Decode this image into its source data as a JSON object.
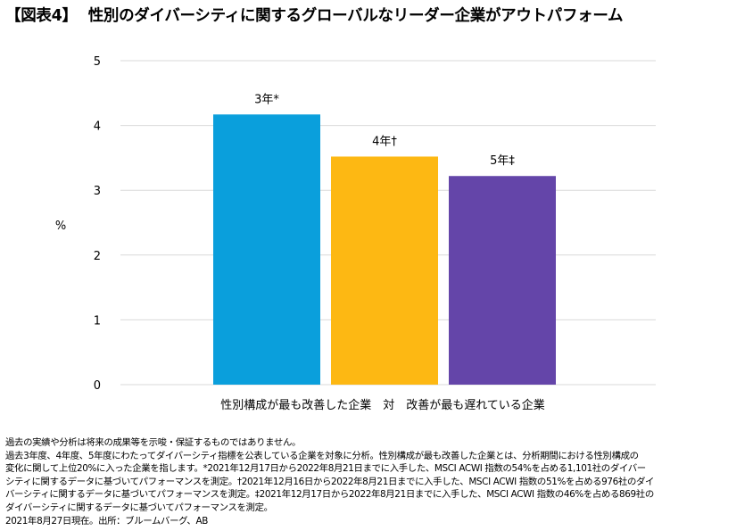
{
  "title": {
    "label": "【図表4】",
    "text": "性別のダイバーシティに関するグローバルなリーダー企業がアウトパフォーム"
  },
  "chart_data": {
    "type": "bar",
    "categories": [
      "3年*",
      "4年†",
      "5年‡"
    ],
    "values": [
      4.17,
      3.52,
      3.22
    ],
    "colors": [
      "#0a9fdc",
      "#fdb813",
      "#6445a9"
    ],
    "ylabel": "%",
    "xlabel": "性別構成が最も改善した企業　対　改善が最も遅れている企業",
    "ylim": [
      0,
      5
    ],
    "yticks": [
      "0",
      "1",
      "2",
      "3",
      "4",
      "5"
    ],
    "grid": true,
    "axis_color": "#d9d9d9"
  },
  "footnotes": [
    "過去の実績や分析は将来の成果等を示唆・保証するものではありません。",
    "過去3年度、4年度、5年度にわたってダイバーシティ指標を公表している企業を対象に分析。性別構成が最も改善した企業とは、分析期間における性別構成の",
    "変化に関して上位20%に入った企業を指します。*2021年12月17日から2022年8月21日までに入手した、MSCI ACWI 指数の54%を占める1,101社のダイバー",
    "シティに関するデータに基づいてパフォーマンスを測定。†2021年12月16日から2022年8月21日までに入手した、MSCI ACWI 指数の51%を占める976社のダイ",
    "バーシティに関するデータに基づいてパフォーマンスを測定。‡2021年12月17日から2022年8月21日までに入手した、MSCI ACWI 指数の46%を占める869社の",
    "ダイバーシティに関するデータに基づいてパフォーマンスを測定。",
    "2021年8月27日現在。出所：ブルームバーグ、AB"
  ]
}
